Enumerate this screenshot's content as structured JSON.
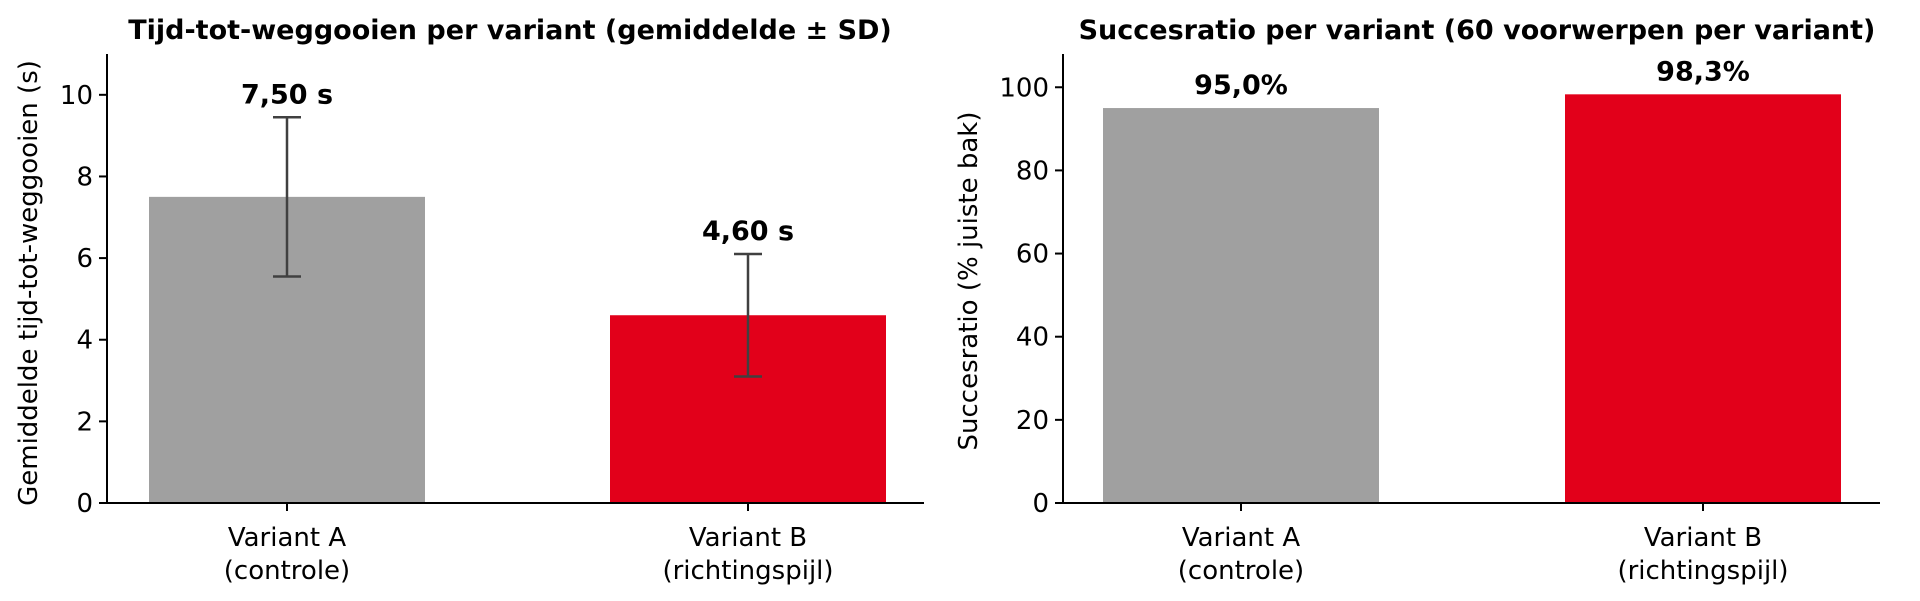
{
  "colors": {
    "control": "#a0a0a0",
    "arrow": "#e2001a",
    "errorbar": "#404040"
  },
  "chart_data": [
    {
      "type": "bar",
      "title": "Tijd-tot-weggooien per variant (gemiddelde ± SD)",
      "xlabel": "",
      "ylabel": "Gemiddelde tijd-tot-weggooien (s)",
      "categories": [
        [
          "Variant A",
          "(controle)"
        ],
        [
          "Variant B",
          "(richtingspijl)"
        ]
      ],
      "values": [
        7.5,
        4.6
      ],
      "errors": [
        1.95,
        1.5
      ],
      "data_labels": [
        "7,50 s",
        "4,60 s"
      ],
      "bar_colors": [
        "#a0a0a0",
        "#e2001a"
      ],
      "ylim": [
        0,
        11
      ],
      "yticks": [
        0,
        2,
        4,
        6,
        8,
        10
      ],
      "ytick_labels": [
        "0",
        "2",
        "4",
        "6",
        "8",
        "10"
      ],
      "grid": false,
      "legend": "none"
    },
    {
      "type": "bar",
      "title": "Succesratio per variant (60 voorwerpen per variant)",
      "xlabel": "",
      "ylabel": "Succesratio (% juiste bak)",
      "categories": [
        [
          "Variant A",
          "(controle)"
        ],
        [
          "Variant B",
          "(richtingspijl)"
        ]
      ],
      "values": [
        95.0,
        98.3
      ],
      "data_labels": [
        "95,0%",
        "98,3%"
      ],
      "bar_colors": [
        "#a0a0a0",
        "#e2001a"
      ],
      "ylim": [
        0,
        108
      ],
      "yticks": [
        0,
        20,
        40,
        60,
        80,
        100
      ],
      "ytick_labels": [
        "0",
        "20",
        "40",
        "60",
        "80",
        "100"
      ],
      "grid": false,
      "legend": "none"
    }
  ]
}
